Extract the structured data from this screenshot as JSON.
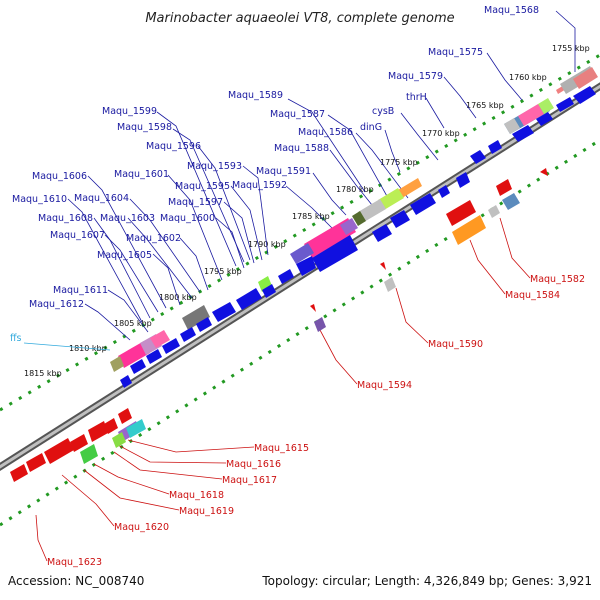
{
  "title": "Marinobacter aquaeolei VT8, complete genome",
  "footer": {
    "accession": "Accession: NC_008740",
    "topology": "Topology: circular; Length: 4,326,849 bp; Genes: 3,921"
  },
  "kbp_ticks": [
    "1755 kbp",
    "1760 kbp",
    "1765 kbp",
    "1770 kbp",
    "1775 kbp",
    "1780 kbp",
    "1785 kbp",
    "1790 kbp",
    "1795 kbp",
    "1800 kbp",
    "1805 kbp",
    "1810 kbp",
    "1815 kbp"
  ],
  "forward_gene_labels": [
    "Maqu_1568",
    "Maqu_1575",
    "Maqu_1579",
    "thrH",
    "cysB",
    "dinG",
    "Maqu_1589",
    "Maqu_1587",
    "Maqu_1586",
    "Maqu_1588",
    "Maqu_1591",
    "Maqu_1592",
    "Maqu_1593",
    "Maqu_1595",
    "Maqu_1596",
    "Maqu_1597",
    "Maqu_1598",
    "Maqu_1599",
    "Maqu_1600",
    "Maqu_1601",
    "Maqu_1602",
    "Maqu_1603",
    "Maqu_1604",
    "Maqu_1605",
    "Maqu_1606",
    "Maqu_1607",
    "Maqu_1608",
    "Maqu_1610",
    "Maqu_1611",
    "Maqu_1612",
    "ffs"
  ],
  "reverse_gene_labels": [
    "Maqu_1582",
    "Maqu_1584",
    "Maqu_1590",
    "Maqu_1594",
    "Maqu_1615",
    "Maqu_1616",
    "Maqu_1617",
    "Maqu_1618",
    "Maqu_1619",
    "Maqu_1620",
    "Maqu_1623"
  ],
  "colors": {
    "forward_label": "#1a1aa0",
    "reverse_label": "#cc1111",
    "rna_label": "#33aadd",
    "forward_gene": "#1010e0",
    "reverse_gene": "#e01010",
    "backbone": "#7f7f7f",
    "tick": "#229922"
  }
}
